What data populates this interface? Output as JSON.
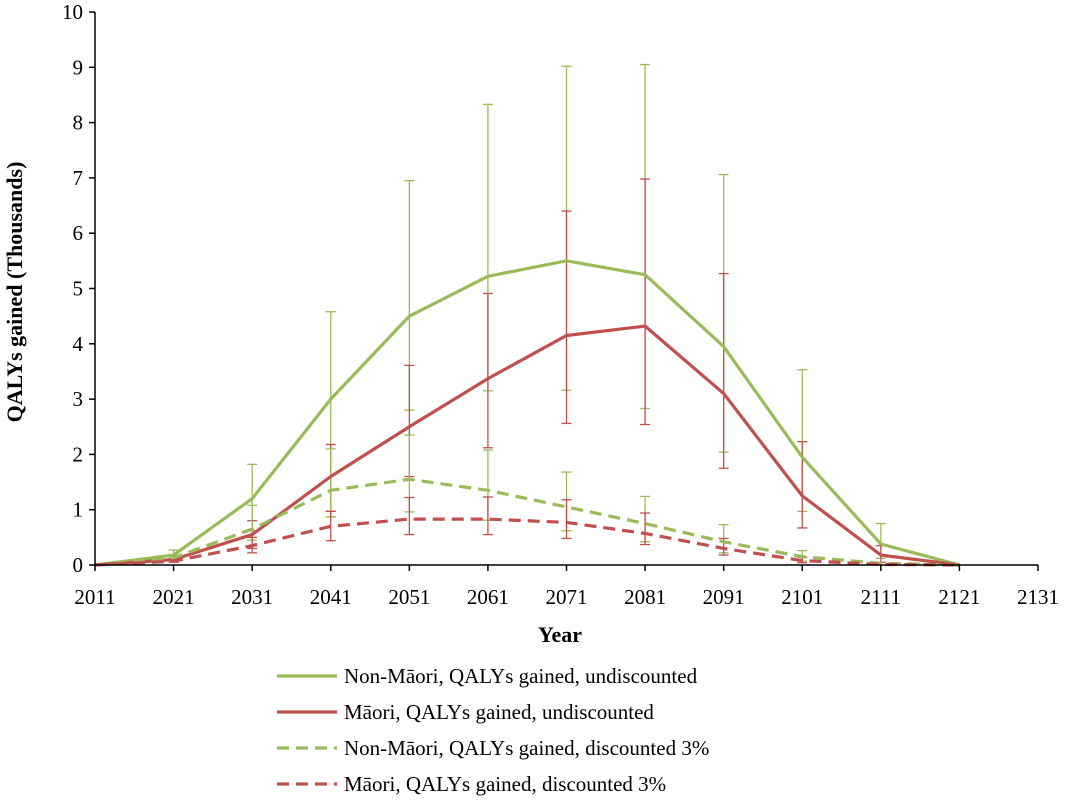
{
  "chart_data": {
    "type": "line",
    "title": "",
    "xlabel": "Year",
    "ylabel": "QALYs gained (Thousands)",
    "xlim": [
      2011,
      2131
    ],
    "ylim": [
      0,
      10
    ],
    "x_ticks": [
      "2011",
      "2021",
      "2031",
      "2041",
      "2051",
      "2061",
      "2071",
      "2081",
      "2091",
      "2101",
      "2111",
      "2121",
      "2131"
    ],
    "y_ticks": [
      "0",
      "1",
      "2",
      "3",
      "4",
      "5",
      "6",
      "7",
      "8",
      "9",
      "10"
    ],
    "grid": false,
    "legend_position": "bottom",
    "x": [
      2011,
      2021,
      2031,
      2041,
      2051,
      2061,
      2071,
      2081,
      2091,
      2101,
      2111,
      2121
    ],
    "series": [
      {
        "name": "Non-Māori, QALYs gained, undiscounted",
        "color": "#9BBB59",
        "dash": "solid",
        "values": [
          0,
          0.18,
          1.2,
          3.0,
          4.5,
          5.22,
          5.5,
          5.25,
          3.95,
          1.95,
          0.38,
          0
        ],
        "error_low": [
          null,
          0.12,
          0.62,
          0.87,
          2.8,
          3.15,
          3.16,
          2.83,
          2.04,
          0.97,
          0.12,
          null
        ],
        "error_high": [
          null,
          0.27,
          1.82,
          4.58,
          6.95,
          8.33,
          9.02,
          9.05,
          7.06,
          3.53,
          0.75,
          null
        ]
      },
      {
        "name": "Māori, QALYs gained, undiscounted",
        "color": "#C0504D",
        "dash": "solid",
        "values": [
          0,
          0.1,
          0.55,
          1.6,
          2.5,
          3.37,
          4.15,
          4.32,
          3.1,
          1.25,
          0.18,
          0
        ],
        "error_low": [
          null,
          0.05,
          0.3,
          0.97,
          1.6,
          2.12,
          2.56,
          2.54,
          1.75,
          0.67,
          0.05,
          null
        ],
        "error_high": [
          null,
          0.16,
          0.8,
          2.18,
          3.61,
          4.91,
          6.4,
          6.98,
          5.27,
          2.23,
          0.35,
          null
        ]
      },
      {
        "name": "Non-Māori, QALYs gained, discounted 3%",
        "color": "#9BBB59",
        "dash": "dashed",
        "values": [
          0,
          0.13,
          0.65,
          1.35,
          1.55,
          1.35,
          1.05,
          0.75,
          0.42,
          0.15,
          0.03,
          0
        ],
        "error_low": [
          null,
          null,
          0.45,
          0.87,
          0.96,
          0.81,
          0.62,
          0.42,
          0.22,
          0.07,
          null,
          null
        ],
        "error_high": [
          null,
          null,
          1.08,
          2.1,
          2.35,
          2.08,
          1.68,
          1.24,
          0.73,
          0.26,
          null,
          null
        ]
      },
      {
        "name": "Māori, QALYs gained, discounted 3%",
        "color": "#C0504D",
        "dash": "dashed",
        "values": [
          0,
          0.07,
          0.35,
          0.7,
          0.83,
          0.83,
          0.77,
          0.57,
          0.3,
          0.08,
          0.01,
          0
        ],
        "error_low": [
          null,
          null,
          0.22,
          0.44,
          0.55,
          0.55,
          0.48,
          0.37,
          0.18,
          0.04,
          null,
          null
        ],
        "error_high": [
          null,
          null,
          0.5,
          0.97,
          1.22,
          1.23,
          1.18,
          0.94,
          0.48,
          0.14,
          null,
          null
        ]
      }
    ]
  }
}
